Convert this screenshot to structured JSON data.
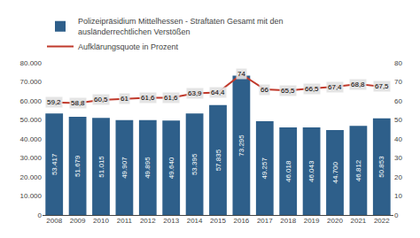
{
  "chart_data": {
    "type": "bar",
    "categories": [
      "2008",
      "2009",
      "2010",
      "2011",
      "2012",
      "2013",
      "2014",
      "2015",
      "2016",
      "2017",
      "2018",
      "2019",
      "2020",
      "2021",
      "2022"
    ],
    "series": [
      {
        "name": "Polizeipräsidium Mittelhessen - Straftaten Gesamt mit den\nausländerrechtlichen Verstößen",
        "type": "bar",
        "color": "#2e5f8a",
        "values": [
          53417,
          51679,
          51015,
          49907,
          49895,
          49640,
          53395,
          57835,
          73295,
          49257,
          46018,
          46043,
          44700,
          46812,
          50853
        ],
        "value_labels": [
          "53.417",
          "51.679",
          "51.015",
          "49.907",
          "49.895",
          "49.640",
          "53.395",
          "57.835",
          "73.295",
          "49.257",
          "46.018",
          "46.043",
          "44.700",
          "46.812",
          "50.853"
        ]
      },
      {
        "name": "Aufklärungsquote in Prozent",
        "type": "line",
        "axis": "y2",
        "color": "#c0392b",
        "values": [
          59.2,
          58.8,
          60.5,
          61.0,
          61.6,
          61.6,
          63.9,
          64.4,
          74.0,
          66.0,
          65.5,
          66.5,
          67.4,
          68.8,
          67.5
        ],
        "value_labels": [
          "59,2",
          "58,8",
          "60,5",
          "61",
          "61,6",
          "61,6",
          "63,9",
          "64,4",
          "74",
          "66",
          "65,5",
          "66,5",
          "67,4",
          "68,8",
          "67,5"
        ]
      }
    ],
    "ylim": [
      0,
      80000
    ],
    "yticks": [
      0,
      {
        "value": 10000,
        "label": "10.000"
      },
      {
        "value": 20000,
        "label": "20.000"
      },
      {
        "value": 30000,
        "label": "30.000"
      },
      {
        "value": 40000,
        "label": "40.000"
      },
      {
        "value": 50000,
        "label": "50.000"
      },
      {
        "value": 60000,
        "label": "60.000"
      },
      {
        "value": 70000,
        "label": "70.000"
      },
      {
        "value": 80000,
        "label": "80.000"
      }
    ],
    "y2lim": [
      0,
      80
    ],
    "y2ticks": [
      0,
      10,
      20,
      30,
      40,
      50,
      60,
      70,
      80
    ],
    "data_labels": true,
    "legend": "upper left",
    "grid": false
  }
}
